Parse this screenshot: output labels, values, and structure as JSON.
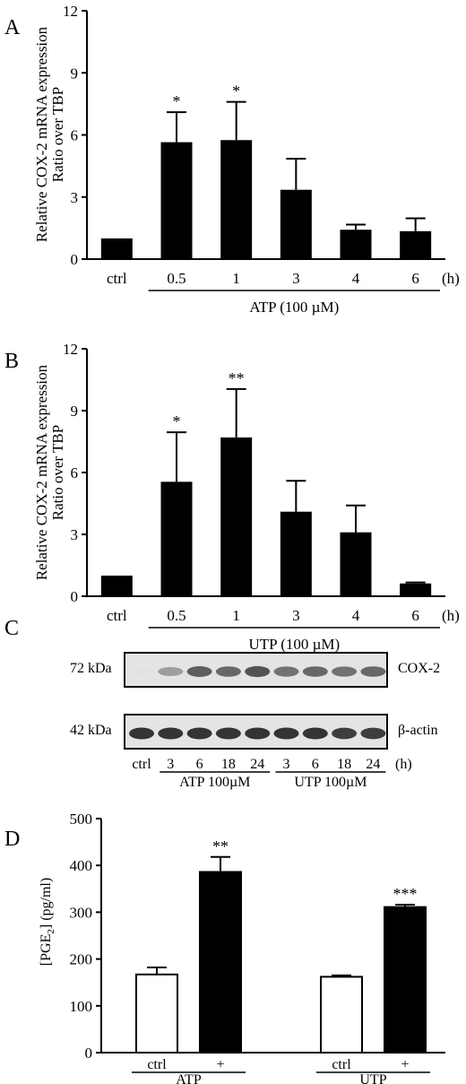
{
  "panels": {
    "A": {
      "letter": "A"
    },
    "B": {
      "letter": "B"
    },
    "C": {
      "letter": "C"
    },
    "D": {
      "letter": "D"
    }
  },
  "chart_data": [
    {
      "panel": "A",
      "type": "bar",
      "ylabel": "Relative COX-2 mRNA expression",
      "ylabel2": "Ratio over TBP",
      "ylim": [
        0,
        12
      ],
      "yticks": [
        0,
        3,
        6,
        9,
        12
      ],
      "categories": [
        "ctrl",
        "0.5",
        "1",
        "3",
        "4",
        "6"
      ],
      "values": [
        1.0,
        5.65,
        5.75,
        3.35,
        1.42,
        1.35
      ],
      "errors": [
        0,
        1.45,
        1.85,
        1.5,
        0.25,
        0.62
      ],
      "annotations": [
        "",
        "*",
        "*",
        "",
        "",
        ""
      ],
      "unit_label": "(h)",
      "group_label": "ATP (100 µM)",
      "bar_color": "#000000"
    },
    {
      "panel": "B",
      "type": "bar",
      "ylabel": "Relative COX-2 mRNA expression",
      "ylabel2": "Ratio over TBP",
      "ylim": [
        0,
        12
      ],
      "yticks": [
        0,
        3,
        6,
        9,
        12
      ],
      "categories": [
        "ctrl",
        "0.5",
        "1",
        "3",
        "4",
        "6"
      ],
      "values": [
        1.0,
        5.55,
        7.7,
        4.1,
        3.1,
        0.62
      ],
      "errors": [
        0,
        2.4,
        2.35,
        1.5,
        1.3,
        0.05
      ],
      "annotations": [
        "",
        "*",
        "**",
        "",
        "",
        ""
      ],
      "unit_label": "(h)",
      "group_label": "UTP (100 µM)",
      "bar_color": "#000000"
    },
    {
      "panel": "D",
      "type": "bar",
      "ylabel": "[PGE",
      "ylabel_sub": "2",
      "ylabel_rest": "] (pg/ml)",
      "ylim": [
        0,
        500
      ],
      "yticks": [
        0,
        100,
        200,
        300,
        400,
        500
      ],
      "categories": [
        "ctrl",
        "+",
        "ctrl",
        "+"
      ],
      "groups": [
        "ATP",
        "UTP"
      ],
      "values": [
        167,
        386,
        162,
        311
      ],
      "errors": [
        15,
        32,
        3,
        5
      ],
      "fills": [
        "#ffffff",
        "#000000",
        "#ffffff",
        "#000000"
      ],
      "annotations": [
        "",
        "**",
        "",
        "***"
      ]
    }
  ],
  "blot": {
    "rows": [
      {
        "mw": "72 kDa",
        "protein": "COX-2"
      },
      {
        "mw": "42 kDa",
        "protein": "β-actin"
      }
    ],
    "lanes": [
      "ctrl",
      "3",
      "6",
      "18",
      "24",
      "3",
      "6",
      "18",
      "24"
    ],
    "unit_label": "(h)",
    "groups": [
      "ATP 100µM",
      "UTP 100µM"
    ],
    "cox2_intensity": [
      0.02,
      0.35,
      0.65,
      0.6,
      0.7,
      0.55,
      0.6,
      0.55,
      0.6
    ],
    "actin_intensity": [
      0.85,
      0.85,
      0.85,
      0.85,
      0.85,
      0.85,
      0.85,
      0.8,
      0.8
    ]
  }
}
